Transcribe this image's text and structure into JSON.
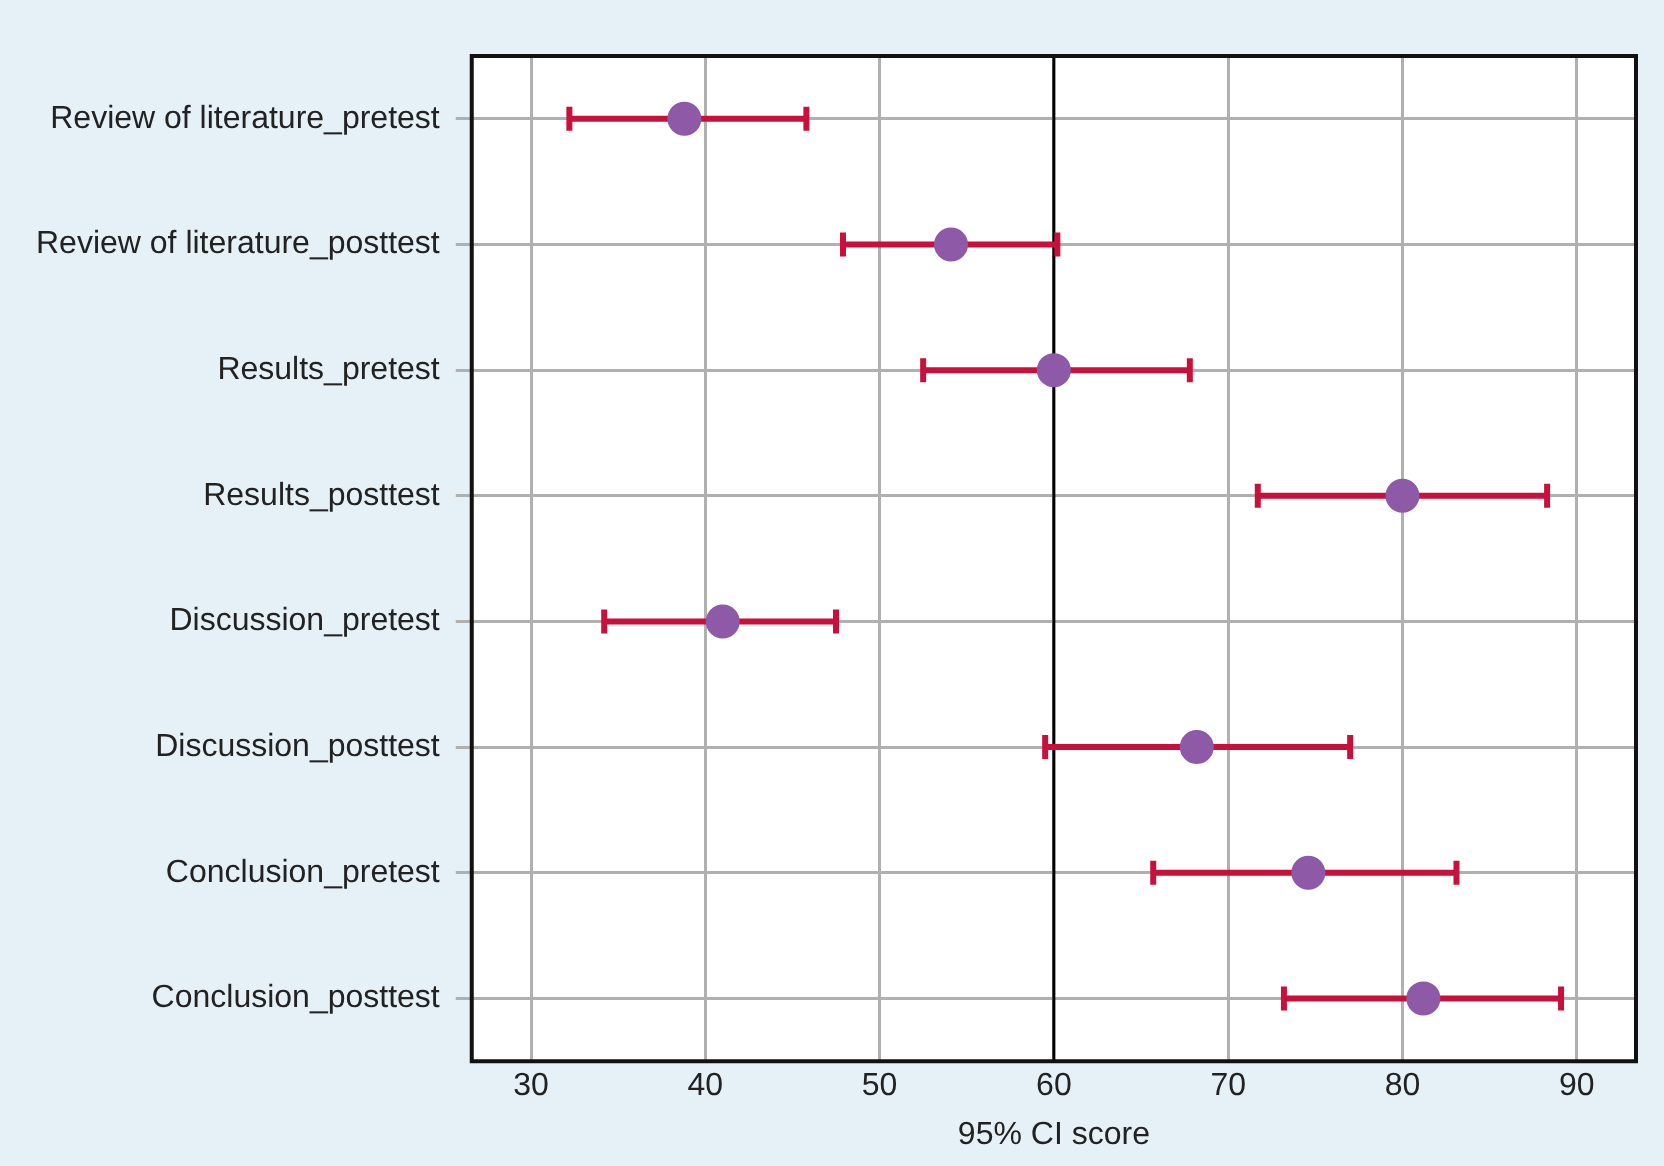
{
  "chart_data": {
    "type": "scatter",
    "orientation": "horizontal",
    "xlabel": "95% CI score",
    "categories": [
      "Review of literature_pretest",
      "Review of literature_posttest",
      "Results_pretest",
      "Results_posttest",
      "Discussion_pretest",
      "Discussion_posttest",
      "Conclusion_pretest",
      "Conclusion_posttest"
    ],
    "series": [
      {
        "color": "#8e5aa8",
        "values": [
          38.8,
          54.1,
          60.0,
          80.0,
          41.0,
          68.2,
          74.6,
          81.2
        ],
        "errors": [
          [
            32.2,
            45.8
          ],
          [
            47.9,
            60.2
          ],
          [
            52.5,
            67.8
          ],
          [
            71.7,
            88.3
          ],
          [
            34.2,
            47.5
          ],
          [
            59.5,
            77.0
          ],
          [
            65.7,
            83.1
          ],
          [
            73.2,
            89.1
          ]
        ]
      }
    ],
    "xlim": [
      26.6,
      93.4
    ],
    "xticks": [
      30,
      40,
      50,
      60,
      70,
      80,
      90
    ],
    "ref_lines": [
      {
        "axis": "x",
        "value": 60,
        "color": "#000000"
      }
    ],
    "grid": true,
    "legend": false,
    "marker": "circle"
  }
}
